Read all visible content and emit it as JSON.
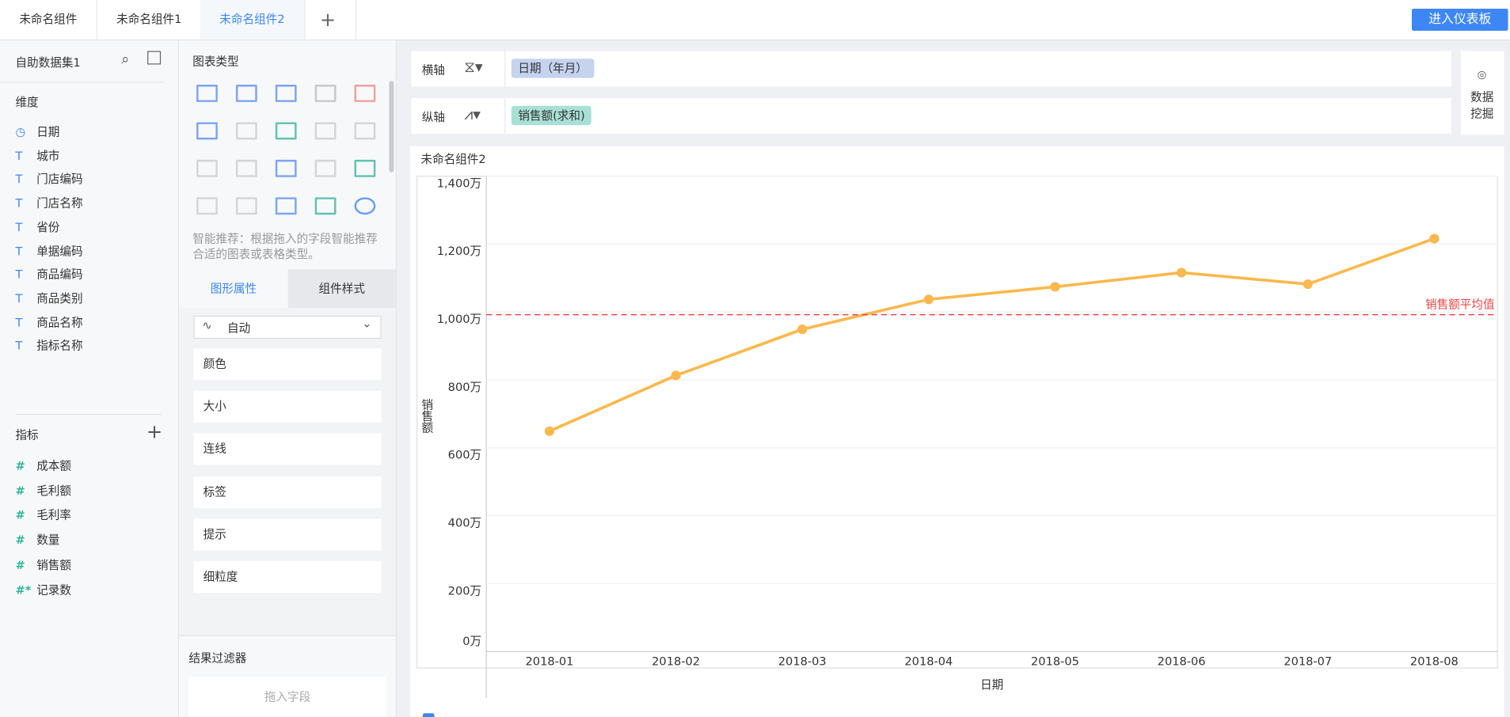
{
  "tabs": [
    "未命名组件",
    "未命名组件1",
    "未命名组件2"
  ],
  "dashboard_button": "进入仪表板",
  "dataset": {
    "name": "自助数据集1"
  },
  "dimensions": {
    "title": "维度",
    "fields": [
      "日期",
      "城市",
      "门店编码",
      "门店名称",
      "省份",
      "单据编码",
      "商品编码",
      "商品类别",
      "商品名称",
      "指标名称"
    ]
  },
  "measures": {
    "title": "指标",
    "fields": [
      "成本额",
      "毛利额",
      "毛利率",
      "数量",
      "销售额",
      "记录数"
    ]
  },
  "chart_types": {
    "title": "图表类型",
    "hint": "智能推荐：根据拖入的字段智能推荐合适的图表或表格类型。"
  },
  "property_tabs": [
    "图形属性",
    "组件样式"
  ],
  "mark_type": "自动",
  "properties": [
    "颜色",
    "大小",
    "连线",
    "标签",
    "提示",
    "细粒度"
  ],
  "filter": {
    "title": "结果过滤器",
    "placeholder": "拖入字段"
  },
  "shelves": {
    "x": {
      "label": "横轴",
      "field": "日期（年月）"
    },
    "y": {
      "label": "纵轴",
      "field": "销售额(求和)"
    }
  },
  "data_mining": "数据挖掘",
  "chart_data": {
    "type": "line",
    "title": "未命名组件2",
    "x_label": "日期",
    "y_label": "销售额",
    "categories": [
      "2018-01",
      "2018-02",
      "2018-03",
      "2018-04",
      "2018-05",
      "2018-06",
      "2018-07",
      "2018-08"
    ],
    "values": [
      649,
      813,
      949,
      1037,
      1074,
      1116,
      1082,
      1216
    ],
    "color": "#fbb84d",
    "reference_line": {
      "label": "销售额平均值",
      "value": 992,
      "color": "#f04545"
    },
    "ylim": [
      0,
      1400
    ],
    "yticks": [
      {
        "value": 0,
        "label": "0万"
      },
      {
        "value": 200,
        "label": "200万"
      },
      {
        "value": 400,
        "label": "400万"
      },
      {
        "value": 600,
        "label": "600万"
      },
      {
        "value": 800,
        "label": "800万"
      },
      {
        "value": 1000,
        "label": "1,000万"
      },
      {
        "value": 1200,
        "label": "1,200万"
      },
      {
        "value": 1400,
        "label": "1,400万"
      }
    ],
    "grid": true
  }
}
